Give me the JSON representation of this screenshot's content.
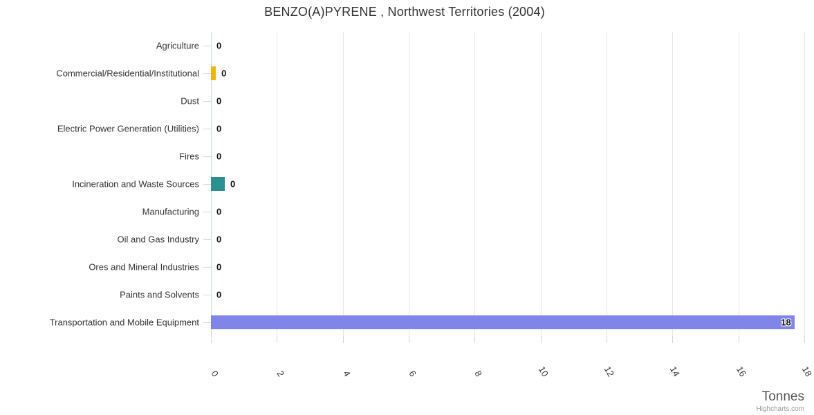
{
  "title": "BENZO(A)PYRENE , Northwest Territories (2004)",
  "credit": "Highcharts.com",
  "colors": {
    "gridline": "#e6e6e6",
    "axis_line": "#ccd6eb",
    "tick": "#ccd6eb",
    "gold_bar": "#edb70d",
    "teal_bar": "#2b908f",
    "purple_bar": "#8085e9"
  },
  "chart_data": {
    "type": "bar",
    "inverted": true,
    "title": "BENZO(A)PYRENE , Northwest Territories (2004)",
    "xlabel": "Tonnes",
    "ylabel": "",
    "xlim": [
      0,
      18
    ],
    "x_ticks": [
      0,
      2,
      4,
      6,
      8,
      10,
      12,
      14,
      16,
      18
    ],
    "grid": true,
    "legend": false,
    "categories": [
      "Agriculture",
      "Commercial/Residential/Institutional",
      "Dust",
      "Electric Power Generation (Utilities)",
      "Fires",
      "Incineration and Waste Sources",
      "Manufacturing",
      "Oil and Gas Industry",
      "Ores and Mineral Industries",
      "Paints and Solvents",
      "Transportation and Mobile Equipment"
    ],
    "values": [
      0,
      0.15,
      0,
      0,
      0,
      0.42,
      0,
      0,
      0,
      0,
      17.7
    ],
    "value_labels": [
      "0",
      "0",
      "0",
      "0",
      "0",
      "0",
      "0",
      "0",
      "0",
      "0",
      "18"
    ],
    "bar_colors": [
      null,
      "#edb70d",
      null,
      null,
      null,
      "#2b908f",
      null,
      null,
      null,
      null,
      "#8085e9"
    ]
  }
}
